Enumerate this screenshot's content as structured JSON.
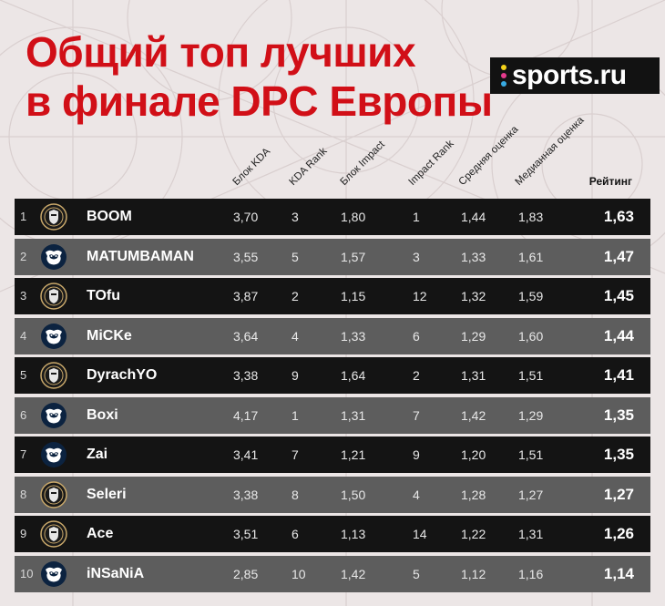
{
  "title": {
    "line1": "Общий топ лучших",
    "line2": "в финале DPC Европы"
  },
  "brand": {
    "name": "sports.ru",
    "dot_colors": [
      "#f4d21a",
      "#e43a8c",
      "#38a9e0"
    ]
  },
  "colors": {
    "title": "#d10f17",
    "row_dark": "#141414",
    "row_grey": "#5d5d5d"
  },
  "chart_data": {
    "type": "table",
    "columns": [
      "Блок KDA",
      "KDA Rank",
      "Блок Impact",
      "Impact Rank",
      "Средняя оценка",
      "Медианная оценка",
      "Рейтинг"
    ],
    "rows": [
      {
        "rank": "1",
        "team_icon": "gaimin-gladiators-logo-icon",
        "player": "BOOM",
        "kda": "3,70",
        "kda_rank": "3",
        "impact": "1,80",
        "impact_rank": "1",
        "avg": "1,44",
        "median": "1,83",
        "rating": "1,63"
      },
      {
        "rank": "2",
        "team_icon": "team-liquid-logo-icon",
        "player": "MATUMBAMAN",
        "kda": "3,55",
        "kda_rank": "5",
        "impact": "1,57",
        "impact_rank": "3",
        "avg": "1,33",
        "median": "1,61",
        "rating": "1,47"
      },
      {
        "rank": "3",
        "team_icon": "gaimin-gladiators-logo-icon",
        "player": "TOfu",
        "kda": "3,87",
        "kda_rank": "2",
        "impact": "1,15",
        "impact_rank": "12",
        "avg": "1,32",
        "median": "1,59",
        "rating": "1,45"
      },
      {
        "rank": "4",
        "team_icon": "team-liquid-logo-icon",
        "player": "MiCKe",
        "kda": "3,64",
        "kda_rank": "4",
        "impact": "1,33",
        "impact_rank": "6",
        "avg": "1,29",
        "median": "1,60",
        "rating": "1,44"
      },
      {
        "rank": "5",
        "team_icon": "gaimin-gladiators-logo-icon",
        "player": "DyrachYO",
        "kda": "3,38",
        "kda_rank": "9",
        "impact": "1,64",
        "impact_rank": "2",
        "avg": "1,31",
        "median": "1,51",
        "rating": "1,41"
      },
      {
        "rank": "6",
        "team_icon": "team-liquid-logo-icon",
        "player": "Boxi",
        "kda": "4,17",
        "kda_rank": "1",
        "impact": "1,31",
        "impact_rank": "7",
        "avg": "1,42",
        "median": "1,29",
        "rating": "1,35"
      },
      {
        "rank": "7",
        "team_icon": "team-liquid-logo-icon",
        "player": "Zai",
        "kda": "3,41",
        "kda_rank": "7",
        "impact": "1,21",
        "impact_rank": "9",
        "avg": "1,20",
        "median": "1,51",
        "rating": "1,35"
      },
      {
        "rank": "8",
        "team_icon": "gaimin-gladiators-logo-icon",
        "player": "Seleri",
        "kda": "3,38",
        "kda_rank": "8",
        "impact": "1,50",
        "impact_rank": "4",
        "avg": "1,28",
        "median": "1,27",
        "rating": "1,27"
      },
      {
        "rank": "9",
        "team_icon": "gaimin-gladiators-logo-icon",
        "player": "Ace",
        "kda": "3,51",
        "kda_rank": "6",
        "impact": "1,13",
        "impact_rank": "14",
        "avg": "1,22",
        "median": "1,31",
        "rating": "1,26"
      },
      {
        "rank": "10",
        "team_icon": "team-liquid-logo-icon",
        "player": "iNSaNiA",
        "kda": "2,85",
        "kda_rank": "10",
        "impact": "1,42",
        "impact_rank": "5",
        "avg": "1,12",
        "median": "1,16",
        "rating": "1,14"
      }
    ]
  }
}
